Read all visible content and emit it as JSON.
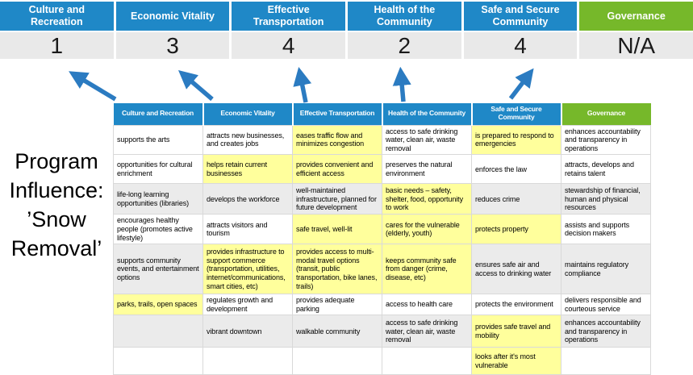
{
  "program_label": {
    "lines": [
      "Program",
      "Influence:",
      "’Snow",
      "Removal’"
    ],
    "full_text": "Program Influence: ’Snow Removal’"
  },
  "banner": {
    "columns": [
      {
        "label": "Culture and Recreation",
        "score": "1"
      },
      {
        "label": "Economic Vitality",
        "score": "3"
      },
      {
        "label": "Effective Transportation",
        "score": "4"
      },
      {
        "label": "Health of the Community",
        "score": "2"
      },
      {
        "label": "Safe and Secure Community",
        "score": "4"
      },
      {
        "label": "Governance",
        "score": "N/A"
      }
    ]
  },
  "matrix": {
    "headers": [
      "Culture and Recreation",
      "Economic Vitality",
      "Effective Transportation",
      "Health of the Community",
      "Safe and Secure Community",
      "Governance"
    ],
    "rows": [
      {
        "shaded": false,
        "cells": [
          {
            "text": "supports the arts",
            "highlight": false
          },
          {
            "text": "attracts new businesses, and creates jobs",
            "highlight": false
          },
          {
            "text": "eases traffic flow and minimizes congestion",
            "highlight": true
          },
          {
            "text": "access to safe drinking water, clean air, waste removal",
            "highlight": false
          },
          {
            "text": "is prepared to respond to emergencies",
            "highlight": true
          },
          {
            "text": "enhances accountability and transparency in operations",
            "highlight": false
          }
        ]
      },
      {
        "shaded": false,
        "cells": [
          {
            "text": "opportunities for cultural enrichment",
            "highlight": false
          },
          {
            "text": "helps retain current businesses",
            "highlight": true
          },
          {
            "text": "provides convenient and efficient access",
            "highlight": true
          },
          {
            "text": "preserves the natural environment",
            "highlight": false
          },
          {
            "text": "enforces the law",
            "highlight": false
          },
          {
            "text": "attracts, develops and retains talent",
            "highlight": false
          }
        ]
      },
      {
        "shaded": true,
        "cells": [
          {
            "text": "life-long learning opportunities (libraries)",
            "highlight": false
          },
          {
            "text": "develops the workforce",
            "highlight": false
          },
          {
            "text": "well-maintained infrastructure, planned for future development",
            "highlight": false
          },
          {
            "text": "basic needs – safety, shelter, food, opportunity to work",
            "highlight": true
          },
          {
            "text": "reduces crime",
            "highlight": false
          },
          {
            "text": "stewardship of financial, human and physical resources",
            "highlight": false
          }
        ]
      },
      {
        "shaded": false,
        "cells": [
          {
            "text": "encourages healthy people (promotes active lifestyle)",
            "highlight": false
          },
          {
            "text": "attracts visitors and tourism",
            "highlight": false
          },
          {
            "text": "safe travel, well-lit",
            "highlight": true
          },
          {
            "text": "cares for the vulnerable (elderly, youth)",
            "highlight": true
          },
          {
            "text": "protects property",
            "highlight": true
          },
          {
            "text": "assists and supports decision makers",
            "highlight": false
          }
        ]
      },
      {
        "shaded": true,
        "cells": [
          {
            "text": "supports community events, and entertainment options",
            "highlight": false
          },
          {
            "text": "provides infrastructure to support commerce (transportation, utilities, internet/communications, smart cities, etc)",
            "highlight": true
          },
          {
            "text": "provides access to multi-modal travel options (transit, public transportation, bike lanes, trails)",
            "highlight": true
          },
          {
            "text": "keeps community safe from danger (crime, disease, etc)",
            "highlight": true
          },
          {
            "text": "ensures safe air and access to drinking water",
            "highlight": false
          },
          {
            "text": "maintains regulatory compliance",
            "highlight": false
          }
        ]
      },
      {
        "shaded": false,
        "cells": [
          {
            "text": "parks, trails, open spaces",
            "highlight": true
          },
          {
            "text": "regulates growth and development",
            "highlight": false
          },
          {
            "text": "provides adequate parking",
            "highlight": false
          },
          {
            "text": "access to health care",
            "highlight": false
          },
          {
            "text": "protects the environment",
            "highlight": false
          },
          {
            "text": "delivers responsible and courteous service",
            "highlight": false
          }
        ]
      },
      {
        "shaded": true,
        "cells": [
          {
            "text": "",
            "highlight": false
          },
          {
            "text": "vibrant downtown",
            "highlight": false
          },
          {
            "text": "walkable community",
            "highlight": false
          },
          {
            "text": "access to safe drinking water, clean air, waste removal",
            "highlight": false
          },
          {
            "text": "provides safe travel and mobility",
            "highlight": true
          },
          {
            "text": "enhances accountability and transparency in operations",
            "highlight": false
          }
        ]
      },
      {
        "shaded": false,
        "cells": [
          {
            "text": "",
            "highlight": false
          },
          {
            "text": "",
            "highlight": false
          },
          {
            "text": "",
            "highlight": false
          },
          {
            "text": "",
            "highlight": false
          },
          {
            "text": "looks after it's most vulnerable",
            "highlight": true
          },
          {
            "text": "",
            "highlight": false
          }
        ]
      }
    ]
  },
  "colors": {
    "header_blue": "#1F88C7",
    "governance_green": "#76B82A",
    "arrow_blue": "#2B7BC1",
    "highlight_yellow": "#FFFF9C",
    "row_shade": "#EBEBEB",
    "score_bg": "#E9E9E9"
  }
}
